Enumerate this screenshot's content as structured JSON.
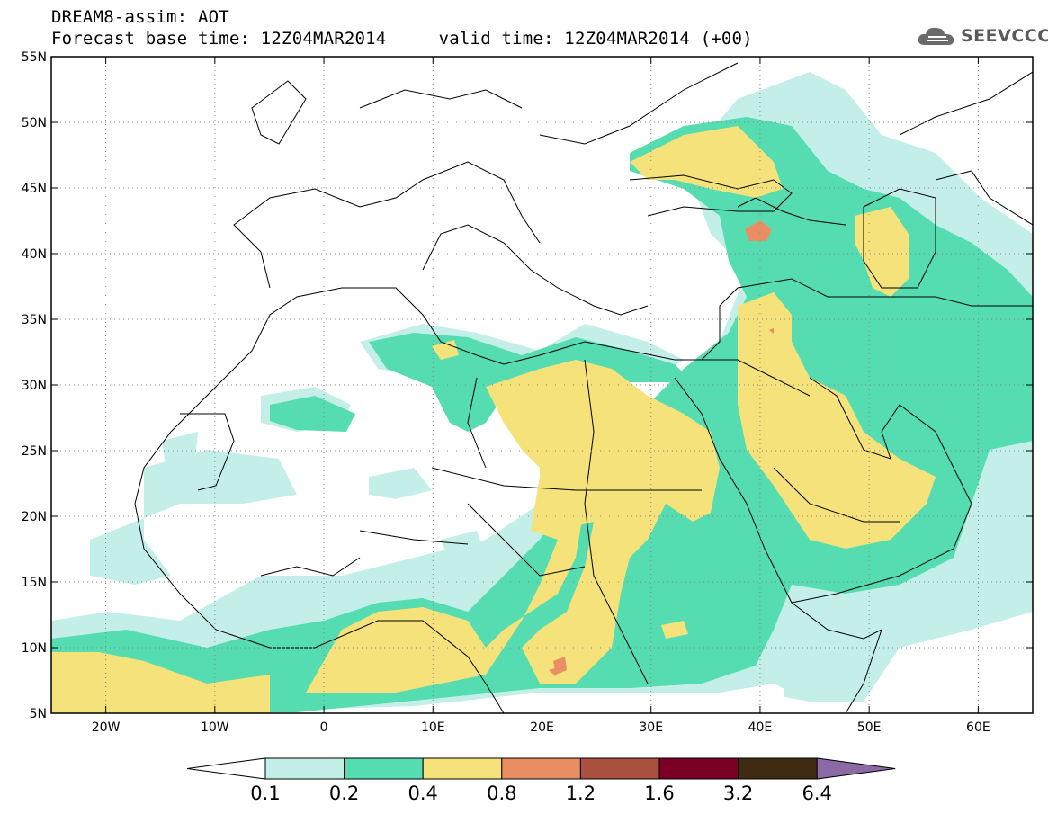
{
  "header": {
    "title_line1": "DREAM8-assim: AOT",
    "title_line2": "Forecast base time: 12Z04MAR2014     valid time: 12Z04MAR2014 (+00)"
  },
  "logo": {
    "text": "SEEVCCC",
    "icon": "cloud-icon"
  },
  "map": {
    "variable": "AOT",
    "lat_range": [
      5,
      55
    ],
    "lon_range": [
      -25,
      65
    ],
    "lat_labels": [
      "55N",
      "50N",
      "45N",
      "40N",
      "35N",
      "30N",
      "25N",
      "20N",
      "15N",
      "10N",
      "5N"
    ],
    "lat_values": [
      55,
      50,
      45,
      40,
      35,
      30,
      25,
      20,
      15,
      10,
      5
    ],
    "lon_labels": [
      "20W",
      "10W",
      "0",
      "10E",
      "20E",
      "30E",
      "40E",
      "50E",
      "60E"
    ],
    "lon_values": [
      -20,
      -10,
      0,
      10,
      20,
      30,
      40,
      50,
      60
    ],
    "gridlines": "dotted"
  },
  "colorbar": {
    "levels": [
      "0.1",
      "0.2",
      "0.4",
      "0.8",
      "1.2",
      "1.6",
      "3.2",
      "6.4"
    ],
    "colors": [
      "#ffffff",
      "#c4efe9",
      "#55dcb1",
      "#f5e27a",
      "#e88e62",
      "#a9503f",
      "#7a0026",
      "#3f2a12",
      "#8b6aa6"
    ]
  }
}
